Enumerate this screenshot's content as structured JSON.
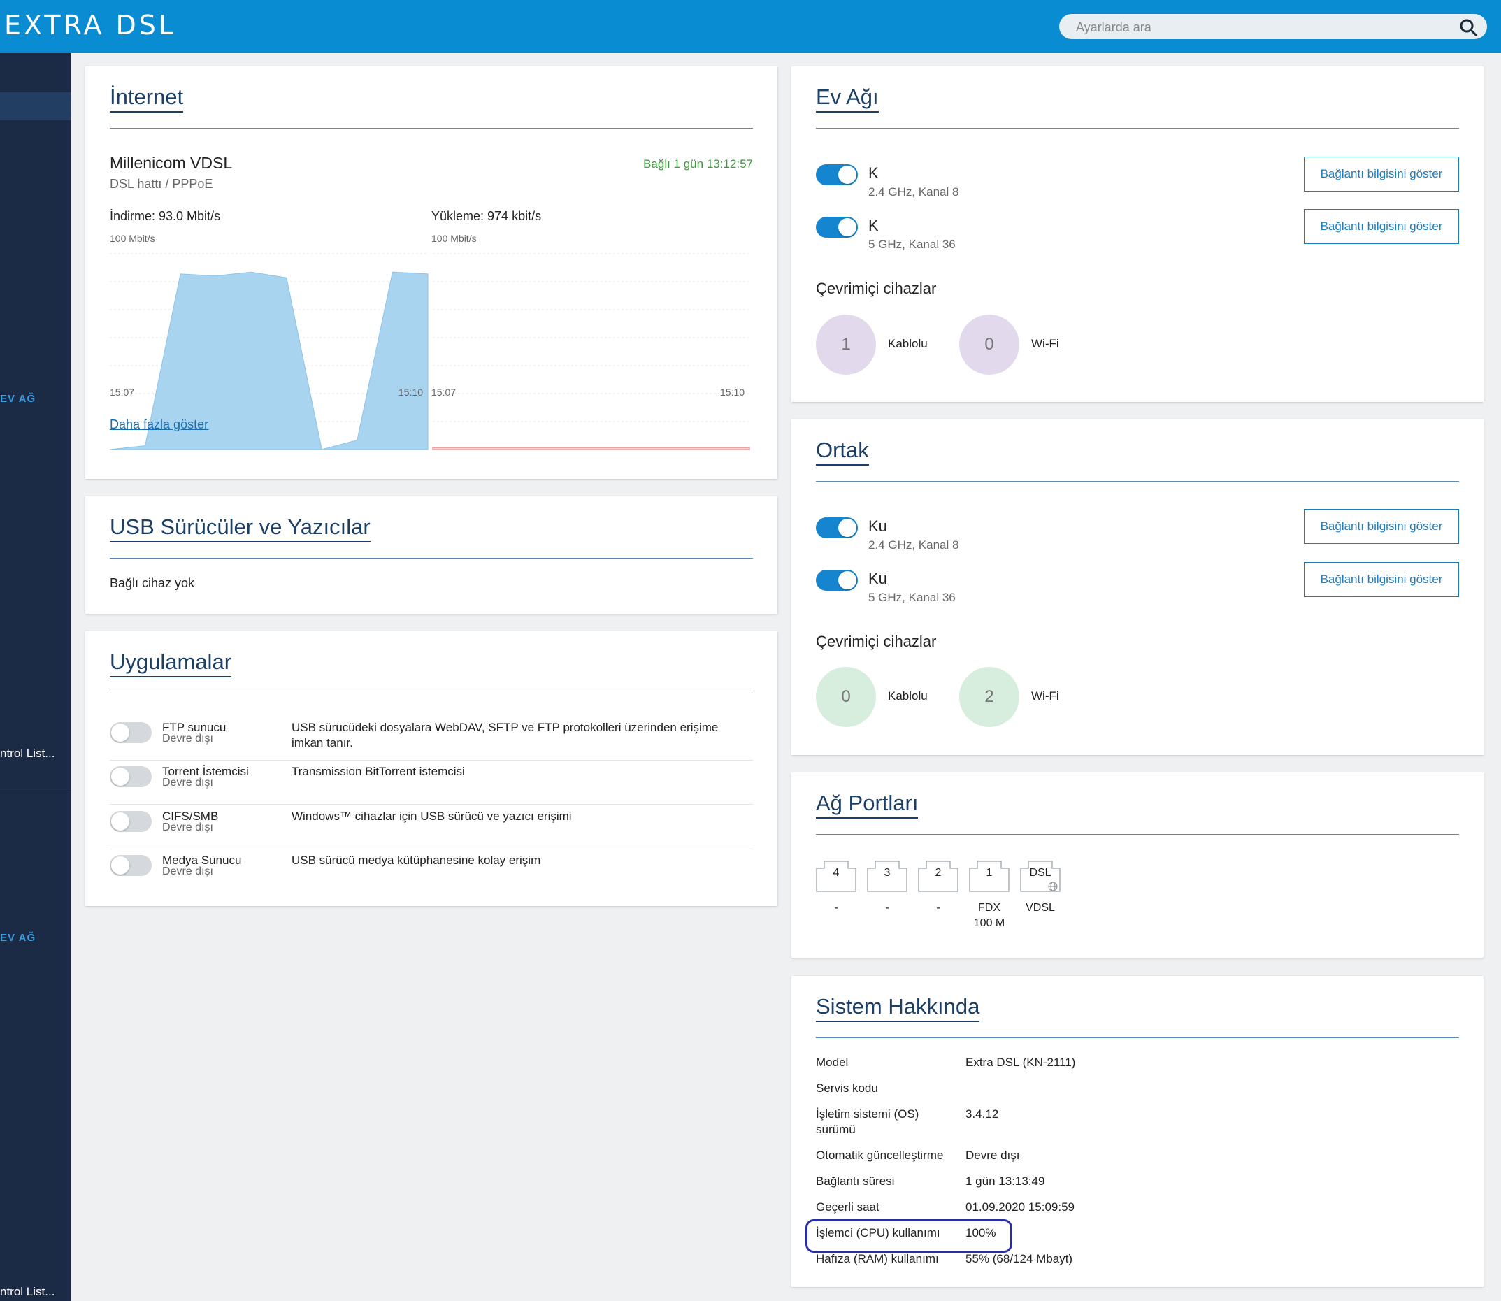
{
  "header": {
    "logo": "EXTRA DSL",
    "search_placeholder": "Ayarlarda ara"
  },
  "sidebar": {
    "sections": [
      "EV AĞ",
      "EV AĞ"
    ],
    "items": [
      "ntrol List...",
      "ntrol List..."
    ]
  },
  "internet": {
    "title": "İnternet",
    "provider": "Millenicom VDSL",
    "line": "DSL hattı / PPPoE",
    "status": "Bağlı 1 gün 13:12:57",
    "download_label": "İndirme: 93.0 Mbit/s",
    "upload_label": "Yükleme: 974 kbit/s",
    "download_scale": "100 Mbit/s",
    "upload_scale": "100 Mbit/s",
    "download_start": "15:07",
    "download_end": "15:10",
    "upload_start": "15:07",
    "upload_end": "15:10",
    "more_link": "Daha fazla göster"
  },
  "chart_data": [
    {
      "type": "area",
      "name": "download",
      "x": [
        "15:07",
        "15:07:20",
        "15:07:40",
        "15:08",
        "15:08:20",
        "15:08:40",
        "15:09",
        "15:09:20",
        "15:09:40",
        "15:10"
      ],
      "values": [
        0,
        2,
        93,
        92,
        94,
        91,
        0,
        5,
        94,
        93
      ],
      "ylim": [
        0,
        100
      ],
      "color": "#a8d4f0"
    },
    {
      "type": "area",
      "name": "upload",
      "x": [
        "15:07",
        "15:10"
      ],
      "values": [
        1,
        1
      ],
      "ylim": [
        0,
        100
      ],
      "color": "#f0b0b0"
    }
  ],
  "usb": {
    "title": "USB Sürücüler ve Yazıcılar",
    "status": "Bağlı cihaz yok"
  },
  "apps": {
    "title": "Uygulamalar",
    "rows": [
      {
        "name": "FTP sunucu",
        "state": "Devre dışı",
        "desc": "USB sürücüdeki dosyalara WebDAV, SFTP ve FTP protokolleri üzerinden erişime",
        "desc2": "imkan tanır."
      },
      {
        "name": "Torrent İstemcisi",
        "state": "Devre dışı",
        "desc": "Transmission BitTorrent istemcisi",
        "desc2": ""
      },
      {
        "name": "CIFS/SMB",
        "state": "Devre dışı",
        "desc": "Windows™ cihazlar için USB sürücü ve yazıcı erişimi",
        "desc2": ""
      },
      {
        "name": "Medya Sunucu",
        "state": "Devre dışı",
        "desc": "USB sürücü medya kütüphanesine kolay erişim",
        "desc2": ""
      }
    ]
  },
  "home_net": {
    "title": "Ev Ağı",
    "wifi": [
      {
        "ssid": "K",
        "info": "2.4 GHz, Kanal 8",
        "button": "Bağlantı bilgisini göster"
      },
      {
        "ssid": "K",
        "info": "5 GHz, Kanal 36",
        "button": "Bağlantı bilgisini göster"
      }
    ],
    "online_title": "Çevrimiçi cihazlar",
    "wired_count": "1",
    "wired_label": "Kablolu",
    "wifi_count": "0",
    "wifi_label": "Wi-Fi"
  },
  "guest_net": {
    "title": "Ortak",
    "wifi": [
      {
        "ssid": "Ku",
        "info": "2.4 GHz, Kanal 8",
        "button": "Bağlantı bilgisini göster"
      },
      {
        "ssid": "Ku",
        "info": "5 GHz, Kanal 36",
        "button": "Bağlantı bilgisini göster"
      }
    ],
    "online_title": "Çevrimiçi cihazlar",
    "wired_count": "0",
    "wired_label": "Kablolu",
    "wifi_count": "2",
    "wifi_label": "Wi-Fi"
  },
  "ports": {
    "title": "Ağ Portları",
    "list": [
      {
        "label": "4",
        "status": "-",
        "status2": ""
      },
      {
        "label": "3",
        "status": "-",
        "status2": ""
      },
      {
        "label": "2",
        "status": "-",
        "status2": ""
      },
      {
        "label": "1",
        "status": "FDX",
        "status2": "100 M"
      },
      {
        "label": "DSL",
        "status": "VDSL",
        "status2": ""
      }
    ]
  },
  "system": {
    "title": "Sistem Hakkında",
    "rows": [
      {
        "key": "Model",
        "key2": "",
        "value": "Extra DSL (KN-2111)"
      },
      {
        "key": "Servis kodu",
        "key2": "",
        "value": ""
      },
      {
        "key": "İşletim sistemi (OS)",
        "key2": "sürümü",
        "value": "3.4.12"
      },
      {
        "key": "Otomatik güncelleştirme",
        "key2": "",
        "value": "Devre dışı"
      },
      {
        "key": "Bağlantı süresi",
        "key2": "",
        "value": "1 gün 13:13:49"
      },
      {
        "key": "Geçerli saat",
        "key2": "",
        "value": "01.09.2020 15:09:59"
      },
      {
        "key": "İşlemci (CPU) kullanımı",
        "key2": "",
        "value": "100%"
      },
      {
        "key": "Hafıza (RAM) kullanımı",
        "key2": "",
        "value": "55% (68/124 Mbayt)"
      }
    ]
  }
}
